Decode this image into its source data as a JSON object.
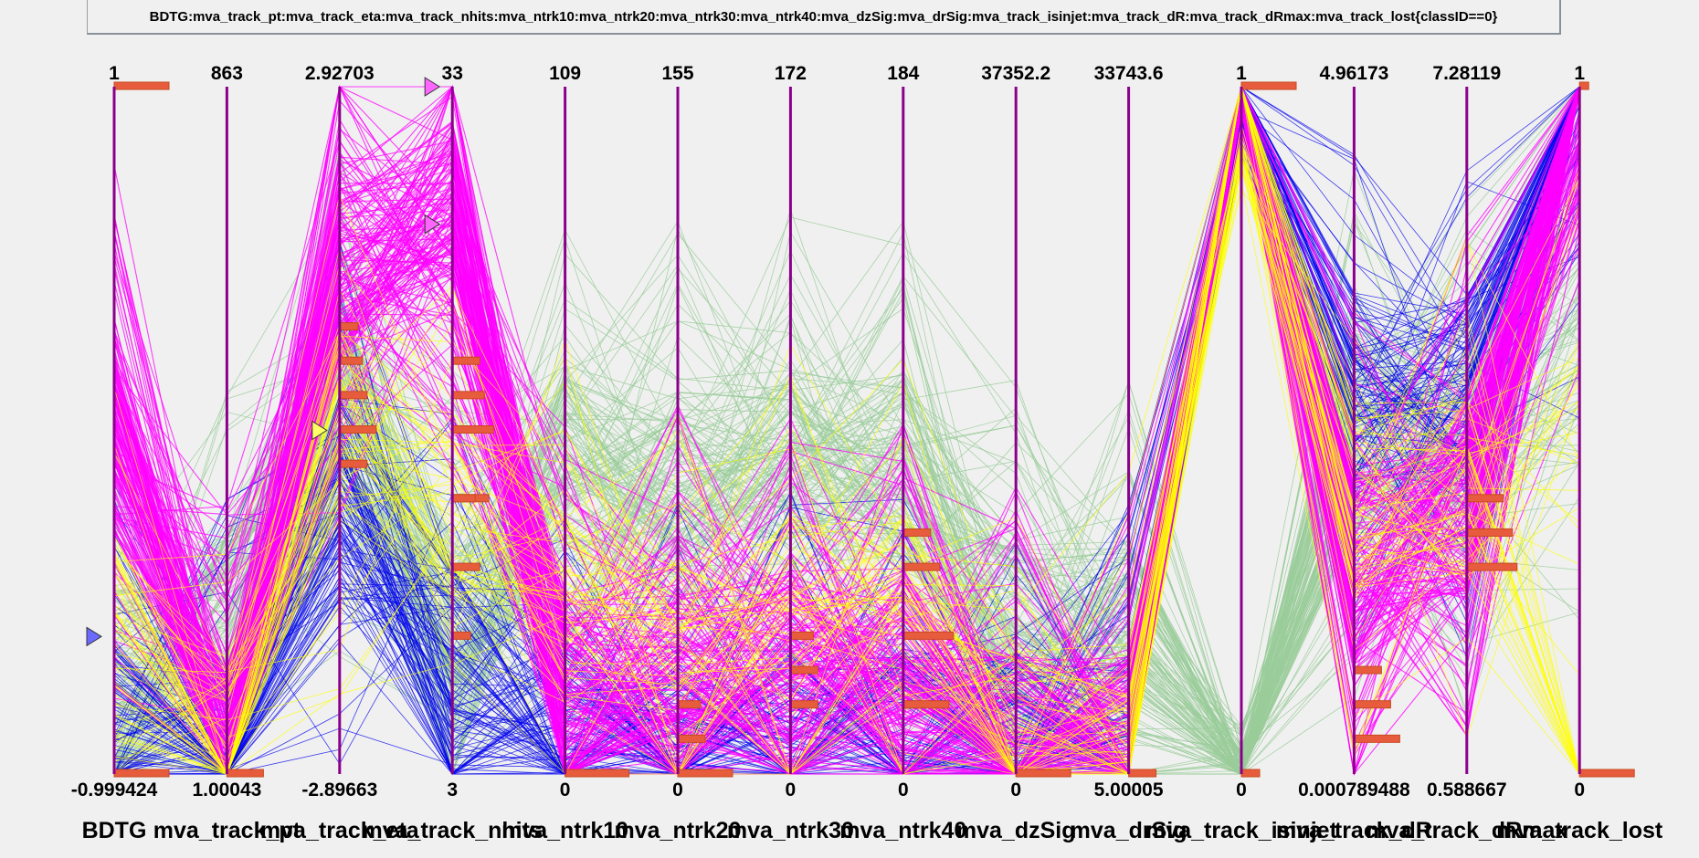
{
  "title": "BDTG:mva_track_pt:mva_track_eta:mva_track_nhits:mva_ntrk10:mva_ntrk20:mva_ntrk30:mva_ntrk40:mva_dzSig:mva_drSig:mva_track_isinjet:mva_track_dR:mva_track_dRmax:mva_track_lost{classID==0}",
  "colors": {
    "background": "#f0f0f0",
    "axis": "#8b008b",
    "series": [
      "#9acd9a",
      "#0000ee",
      "#ff00ff",
      "#ffff00"
    ],
    "histogram": "#e65c3c",
    "histogram_edge": "#c94a1e"
  },
  "chart_data": {
    "type": "parallel_coordinates",
    "title": "BDTG:mva_track_pt:mva_track_eta:mva_track_nhits:mva_ntrk10:mva_ntrk20:mva_ntrk30:mva_ntrk40:mva_dzSig:mva_drSig:mva_track_isinjet:mva_track_dR:mva_track_dRmax:mva_track_lost{classID==0}",
    "axes": [
      {
        "name": "BDTG",
        "min": "-0.999424",
        "max": "1"
      },
      {
        "name": "mva_track_pt",
        "min": "1.00043",
        "max": "863"
      },
      {
        "name": "mva_track_eta",
        "min": "-2.89663",
        "max": "2.92703"
      },
      {
        "name": "mva_track_nhits",
        "min": "3",
        "max": "33"
      },
      {
        "name": "mva_ntrk10",
        "min": "0",
        "max": "109"
      },
      {
        "name": "mva_ntrk20",
        "min": "0",
        "max": "155"
      },
      {
        "name": "mva_ntrk30",
        "min": "0",
        "max": "172"
      },
      {
        "name": "mva_ntrk40",
        "min": "0",
        "max": "184"
      },
      {
        "name": "mva_dzSig",
        "min": "0",
        "max": "37352.2"
      },
      {
        "name": "mva_drSig",
        "min": "5.00005",
        "max": "33743.6"
      },
      {
        "name": "mva_track_isinjet",
        "min": "0",
        "max": "1"
      },
      {
        "name": "mva_track_dR",
        "min": "0.000789488",
        "max": "4.96173"
      },
      {
        "name": "mva_track_dRmax",
        "min": "0.588667",
        "max": "7.28119"
      },
      {
        "name": "mva_track_lost",
        "min": "0",
        "max": "1"
      }
    ],
    "series": [
      {
        "color": "#9acd9a",
        "profile": [
          0.12,
          0.2,
          0.55,
          0.2,
          0.45,
          0.43,
          0.44,
          0.44,
          0.2,
          0.2,
          0.02,
          0.5,
          0.45,
          0.6
        ]
      },
      {
        "color": "#0000ee",
        "profile": [
          0.05,
          0.01,
          0.4,
          0.15,
          0.05,
          0.03,
          0.03,
          0.03,
          0.03,
          0.02,
          0.95,
          0.55,
          0.55,
          0.9
        ]
      },
      {
        "color": "#ff00ff",
        "profile": [
          0.5,
          0.01,
          0.75,
          0.8,
          0.12,
          0.15,
          0.15,
          0.15,
          0.03,
          0.02,
          0.98,
          0.3,
          0.4,
          0.95
        ]
      },
      {
        "color": "#ffff00",
        "profile": [
          0.2,
          0.02,
          0.5,
          0.4,
          0.25,
          0.25,
          0.25,
          0.25,
          0.05,
          0.05,
          0.9,
          0.4,
          0.42,
          0.5
        ]
      }
    ],
    "cut_markers": [
      {
        "axis": 0,
        "value": 0.2
      },
      {
        "axis": 2,
        "value": 0.5
      },
      {
        "axis": 3,
        "value": 1.0
      },
      {
        "axis": 3,
        "value": 0.8
      }
    ],
    "legend": "none"
  }
}
